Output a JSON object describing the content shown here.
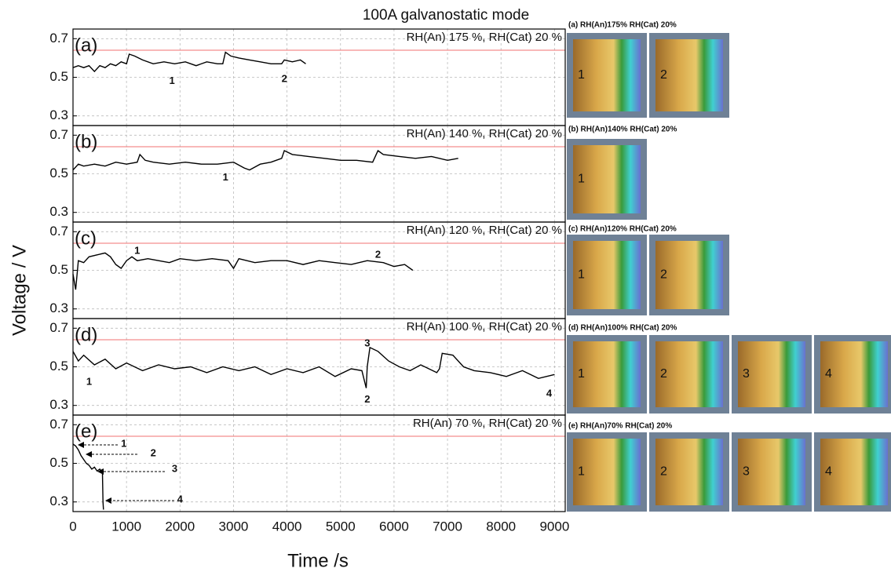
{
  "figure": {
    "title": "100A galvanostatic mode",
    "xlabel": "Time /s",
    "ylabel": "Voltage / V"
  },
  "chart_data": [
    {
      "type": "line",
      "label": "(a)",
      "subtitle": "RH(An) 175 %, RH(Cat) 20 %",
      "color": "#000000",
      "hline": 0.64,
      "hline_color": "#f07070",
      "xlim": [
        0,
        9200
      ],
      "xticks": [
        0,
        1000,
        2000,
        3000,
        4000,
        5000,
        6000,
        7000,
        8000,
        9000
      ],
      "ylim": [
        0.25,
        0.75
      ],
      "yticks": [
        0.3,
        0.5,
        0.7
      ],
      "x": [
        0,
        100,
        200,
        300,
        400,
        500,
        600,
        700,
        800,
        900,
        1000,
        1050,
        1150,
        1300,
        1500,
        1700,
        1900,
        2100,
        2300,
        2500,
        2700,
        2800,
        2850,
        2950,
        3100,
        3300,
        3500,
        3700,
        3900,
        3950,
        4100,
        4250,
        4350
      ],
      "values": [
        0.55,
        0.56,
        0.55,
        0.56,
        0.53,
        0.56,
        0.55,
        0.57,
        0.56,
        0.58,
        0.57,
        0.62,
        0.61,
        0.59,
        0.57,
        0.58,
        0.57,
        0.58,
        0.56,
        0.58,
        0.57,
        0.57,
        0.63,
        0.61,
        0.6,
        0.59,
        0.58,
        0.57,
        0.57,
        0.59,
        0.58,
        0.59,
        0.57
      ],
      "annotations": [
        {
          "text": "1",
          "x": 1850,
          "y": 0.48
        },
        {
          "text": "2",
          "x": 3950,
          "y": 0.49
        }
      ]
    },
    {
      "type": "line",
      "label": "(b)",
      "subtitle": "RH(An) 140 %, RH(Cat) 20 %",
      "color": "#000000",
      "hline": 0.64,
      "hline_color": "#f07070",
      "xlim": [
        0,
        9200
      ],
      "xticks": [
        0,
        1000,
        2000,
        3000,
        4000,
        5000,
        6000,
        7000,
        8000,
        9000
      ],
      "ylim": [
        0.25,
        0.75
      ],
      "yticks": [
        0.3,
        0.5,
        0.7
      ],
      "x": [
        0,
        100,
        200,
        400,
        600,
        800,
        1000,
        1200,
        1250,
        1350,
        1500,
        1800,
        2100,
        2400,
        2700,
        3000,
        3200,
        3300,
        3500,
        3700,
        3900,
        3950,
        4100,
        4400,
        4700,
        5000,
        5300,
        5600,
        5700,
        5800,
        6100,
        6400,
        6700,
        7000,
        7200
      ],
      "values": [
        0.52,
        0.55,
        0.54,
        0.55,
        0.54,
        0.56,
        0.55,
        0.56,
        0.6,
        0.57,
        0.56,
        0.55,
        0.56,
        0.55,
        0.55,
        0.56,
        0.53,
        0.52,
        0.55,
        0.56,
        0.58,
        0.62,
        0.6,
        0.59,
        0.58,
        0.57,
        0.57,
        0.56,
        0.62,
        0.6,
        0.59,
        0.58,
        0.59,
        0.57,
        0.58
      ],
      "annotations": [
        {
          "text": "1",
          "x": 2850,
          "y": 0.48
        }
      ]
    },
    {
      "type": "line",
      "label": "(c)",
      "subtitle": "RH(An) 120 %, RH(Cat) 20 %",
      "color": "#000000",
      "hline": 0.64,
      "hline_color": "#f07070",
      "xlim": [
        0,
        9200
      ],
      "xticks": [
        0,
        1000,
        2000,
        3000,
        4000,
        5000,
        6000,
        7000,
        8000,
        9000
      ],
      "ylim": [
        0.25,
        0.75
      ],
      "yticks": [
        0.3,
        0.5,
        0.7
      ],
      "x": [
        0,
        50,
        100,
        200,
        300,
        450,
        600,
        700,
        800,
        900,
        1000,
        1100,
        1200,
        1400,
        1600,
        1800,
        2000,
        2300,
        2600,
        2900,
        3000,
        3100,
        3400,
        3700,
        4000,
        4300,
        4600,
        4900,
        5200,
        5500,
        5800,
        6000,
        6200,
        6350
      ],
      "values": [
        0.48,
        0.4,
        0.55,
        0.54,
        0.57,
        0.58,
        0.59,
        0.57,
        0.53,
        0.51,
        0.55,
        0.57,
        0.55,
        0.56,
        0.55,
        0.54,
        0.56,
        0.55,
        0.56,
        0.55,
        0.51,
        0.56,
        0.54,
        0.55,
        0.55,
        0.53,
        0.55,
        0.54,
        0.53,
        0.55,
        0.54,
        0.52,
        0.53,
        0.5
      ],
      "annotations": [
        {
          "text": "1",
          "x": 1200,
          "y": 0.6
        },
        {
          "text": "2",
          "x": 5700,
          "y": 0.58
        }
      ]
    },
    {
      "type": "line",
      "label": "(d)",
      "subtitle": "RH(An) 100 %, RH(Cat) 20 %",
      "color": "#000000",
      "hline": 0.64,
      "hline_color": "#f07070",
      "xlim": [
        0,
        9200
      ],
      "xticks": [
        0,
        1000,
        2000,
        3000,
        4000,
        5000,
        6000,
        7000,
        8000,
        9000
      ],
      "ylim": [
        0.25,
        0.75
      ],
      "yticks": [
        0.3,
        0.5,
        0.7
      ],
      "x": [
        0,
        100,
        200,
        400,
        600,
        800,
        1000,
        1300,
        1600,
        1900,
        2200,
        2500,
        2800,
        3100,
        3400,
        3700,
        4000,
        4300,
        4600,
        4900,
        5200,
        5400,
        5480,
        5500,
        5550,
        5700,
        5900,
        6100,
        6300,
        6500,
        6800,
        6850,
        6900,
        7100,
        7300,
        7500,
        7800,
        8100,
        8400,
        8700,
        9000
      ],
      "values": [
        0.58,
        0.53,
        0.56,
        0.51,
        0.54,
        0.49,
        0.52,
        0.48,
        0.51,
        0.49,
        0.5,
        0.47,
        0.5,
        0.48,
        0.5,
        0.46,
        0.49,
        0.47,
        0.5,
        0.45,
        0.49,
        0.48,
        0.39,
        0.5,
        0.6,
        0.58,
        0.53,
        0.5,
        0.48,
        0.51,
        0.47,
        0.49,
        0.57,
        0.56,
        0.5,
        0.48,
        0.47,
        0.45,
        0.48,
        0.44,
        0.46
      ],
      "annotations": [
        {
          "text": "1",
          "x": 300,
          "y": 0.42
        },
        {
          "text": "3",
          "x": 5500,
          "y": 0.62
        },
        {
          "text": "2",
          "x": 5500,
          "y": 0.33
        },
        {
          "text": "4",
          "x": 8900,
          "y": 0.36
        }
      ]
    },
    {
      "type": "line",
      "label": "(e)",
      "subtitle": "RH(An) 70 %, RH(Cat) 20 %",
      "color": "#000000",
      "hline": 0.64,
      "hline_color": "#f07070",
      "xlim": [
        0,
        9200
      ],
      "xticks": [
        0,
        1000,
        2000,
        3000,
        4000,
        5000,
        6000,
        7000,
        8000,
        9000
      ],
      "ylim": [
        0.25,
        0.75
      ],
      "yticks": [
        0.3,
        0.5,
        0.7
      ],
      "x": [
        0,
        50,
        100,
        150,
        200,
        250,
        300,
        350,
        400,
        450,
        500,
        550,
        560,
        570
      ],
      "values": [
        0.6,
        0.59,
        0.57,
        0.54,
        0.52,
        0.5,
        0.49,
        0.47,
        0.48,
        0.46,
        0.47,
        0.45,
        0.3,
        0.26
      ],
      "annotations": [
        {
          "text": "1",
          "x": 950,
          "y": 0.6
        },
        {
          "text": "2",
          "x": 1500,
          "y": 0.55
        },
        {
          "text": "3",
          "x": 1900,
          "y": 0.47
        },
        {
          "text": "4",
          "x": 2000,
          "y": 0.31
        }
      ]
    }
  ],
  "thumbnails": [
    {
      "caption": "(a) RH(An)175%  RH(Cat) 20%",
      "labels": [
        "1",
        "2"
      ]
    },
    {
      "caption": "(b) RH(An)140%  RH(Cat) 20%",
      "labels": [
        "1"
      ]
    },
    {
      "caption": "(c) RH(An)120%  RH(Cat) 20%",
      "labels": [
        "1",
        "2"
      ]
    },
    {
      "caption": "(d) RH(An)100%  RH(Cat) 20%",
      "labels": [
        "1",
        "2",
        "3",
        "4"
      ]
    },
    {
      "caption": "(e) RH(An)70%  RH(Cat) 20%",
      "labels": [
        "1",
        "2",
        "3",
        "4"
      ]
    }
  ]
}
